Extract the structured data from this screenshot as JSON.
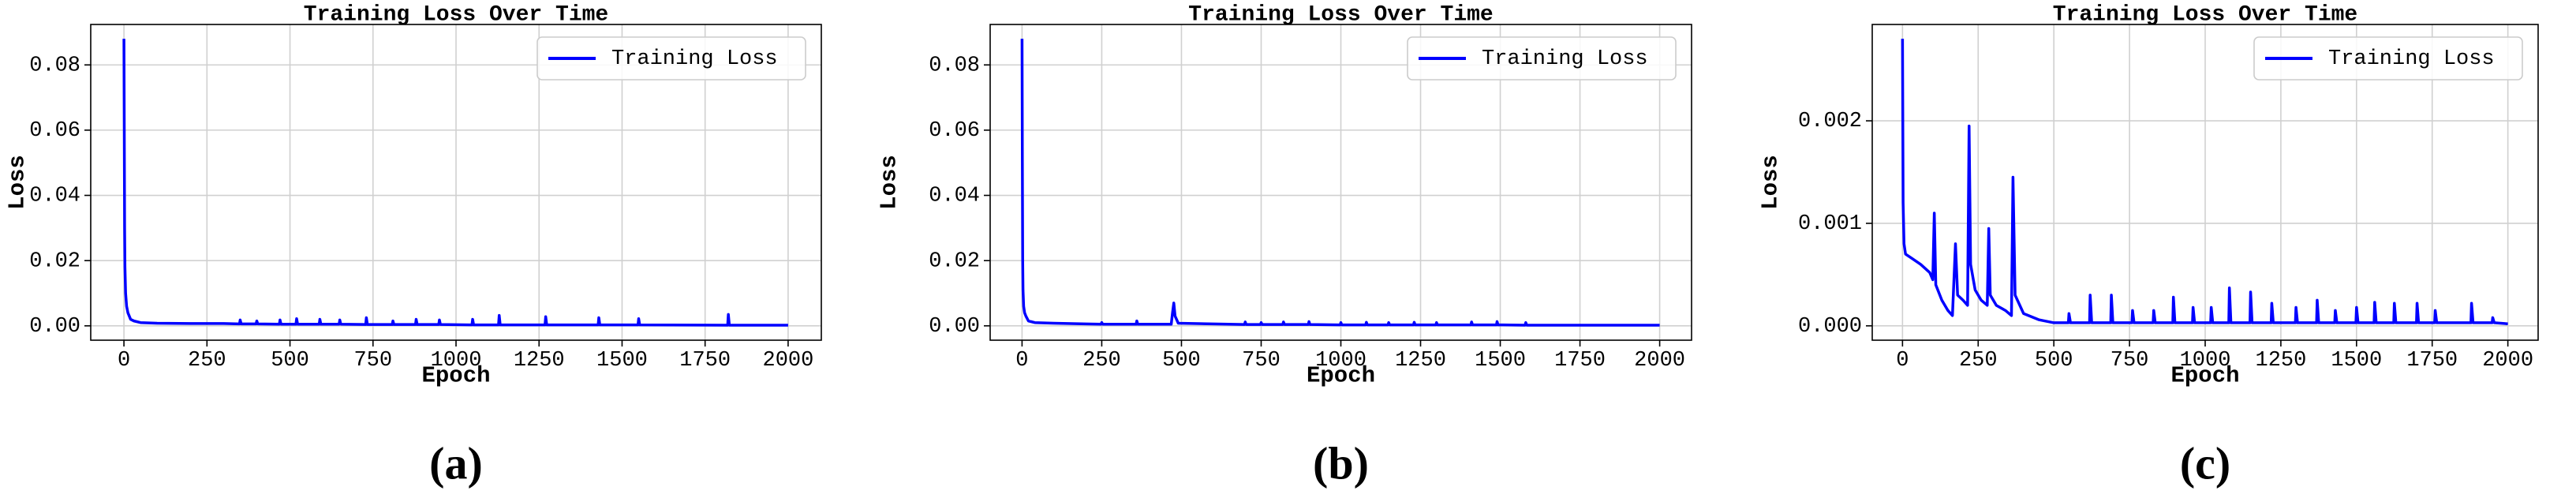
{
  "chart_data": [
    {
      "type": "line",
      "title": "Training Loss Over Time",
      "x_label": "Epoch",
      "y_label": "Loss",
      "caption": "(a)",
      "x": [
        0,
        1,
        2,
        3,
        5,
        8,
        12,
        20,
        30,
        50,
        100,
        200,
        300,
        348,
        350,
        353,
        398,
        400,
        403,
        468,
        470,
        473,
        518,
        520,
        523,
        588,
        590,
        593,
        648,
        650,
        653,
        728,
        730,
        733,
        808,
        810,
        813,
        878,
        880,
        883,
        948,
        950,
        953,
        1048,
        1050,
        1053,
        1128,
        1130,
        1133,
        1268,
        1270,
        1273,
        1428,
        1430,
        1433,
        1548,
        1550,
        1553,
        1818,
        1820,
        1823,
        1900,
        2000
      ],
      "series": [
        {
          "name": "Training Loss",
          "color": "#0000ff",
          "values": [
            0.088,
            0.06,
            0.03,
            0.018,
            0.01,
            0.006,
            0.004,
            0.002,
            0.0015,
            0.001,
            0.0008,
            0.0007,
            0.0007,
            0.0006,
            0.0018,
            0.0006,
            0.0006,
            0.0015,
            0.0006,
            0.0005,
            0.0018,
            0.0005,
            0.0005,
            0.0022,
            0.0005,
            0.0005,
            0.002,
            0.0005,
            0.0005,
            0.0018,
            0.0005,
            0.0004,
            0.0025,
            0.0004,
            0.0004,
            0.0015,
            0.0004,
            0.0004,
            0.002,
            0.0004,
            0.0004,
            0.0018,
            0.0004,
            0.0003,
            0.002,
            0.0003,
            0.0003,
            0.0032,
            0.0003,
            0.0003,
            0.0028,
            0.0003,
            0.0003,
            0.0025,
            0.0003,
            0.0003,
            0.0022,
            0.0003,
            0.0002,
            0.0035,
            0.0002,
            0.0002,
            0.0002
          ]
        }
      ],
      "xlim": [
        -100,
        2100
      ],
      "xticks": [
        0,
        250,
        500,
        750,
        1000,
        1250,
        1500,
        1750,
        2000
      ],
      "ylim": [
        -0.0044,
        0.0924
      ],
      "yticks": [
        {
          "value": 0,
          "label": "0.00"
        },
        {
          "value": 0.02,
          "label": "0.02"
        },
        {
          "value": 0.04,
          "label": "0.04"
        },
        {
          "value": 0.06,
          "label": "0.06"
        },
        {
          "value": 0.08,
          "label": "0.08"
        }
      ],
      "grid": true,
      "legend": "upper right"
    },
    {
      "type": "line",
      "title": "Training Loss Over Time",
      "x_label": "Epoch",
      "y_label": "Loss",
      "caption": "(b)",
      "x": [
        0,
        1,
        2,
        3,
        5,
        8,
        12,
        20,
        40,
        100,
        200,
        248,
        250,
        253,
        358,
        360,
        363,
        468,
        472,
        476,
        480,
        490,
        698,
        700,
        703,
        748,
        750,
        753,
        818,
        820,
        823,
        898,
        900,
        903,
        998,
        1000,
        1003,
        1078,
        1080,
        1083,
        1148,
        1150,
        1153,
        1228,
        1230,
        1233,
        1298,
        1300,
        1303,
        1408,
        1410,
        1413,
        1488,
        1490,
        1493,
        1578,
        1580,
        1583,
        1700,
        2000
      ],
      "series": [
        {
          "name": "Training Loss",
          "color": "#0000ff",
          "values": [
            0.088,
            0.05,
            0.02,
            0.011,
            0.006,
            0.004,
            0.003,
            0.0015,
            0.001,
            0.0008,
            0.0006,
            0.0005,
            0.001,
            0.0005,
            0.0005,
            0.0015,
            0.0005,
            0.0005,
            0.004,
            0.007,
            0.003,
            0.0008,
            0.0004,
            0.0012,
            0.0004,
            0.0004,
            0.001,
            0.0004,
            0.0004,
            0.0012,
            0.0004,
            0.0004,
            0.0013,
            0.0004,
            0.0003,
            0.001,
            0.0003,
            0.0003,
            0.0011,
            0.0003,
            0.0003,
            0.001,
            0.0003,
            0.0003,
            0.0011,
            0.0003,
            0.0003,
            0.001,
            0.0003,
            0.0003,
            0.0012,
            0.0003,
            0.0003,
            0.0013,
            0.0003,
            0.0002,
            0.001,
            0.0002,
            0.0002,
            0.0002
          ]
        }
      ],
      "xlim": [
        -100,
        2100
      ],
      "xticks": [
        0,
        250,
        500,
        750,
        1000,
        1250,
        1500,
        1750,
        2000
      ],
      "ylim": [
        -0.0044,
        0.0924
      ],
      "yticks": [
        {
          "value": 0,
          "label": "0.00"
        },
        {
          "value": 0.02,
          "label": "0.02"
        },
        {
          "value": 0.04,
          "label": "0.04"
        },
        {
          "value": 0.06,
          "label": "0.06"
        },
        {
          "value": 0.08,
          "label": "0.08"
        }
      ],
      "grid": true,
      "legend": "upper right"
    },
    {
      "type": "line",
      "title": "Training Loss Over Time",
      "x_label": "Epoch",
      "y_label": "Loss",
      "caption": "(c)",
      "x": [
        0,
        2,
        5,
        10,
        30,
        60,
        90,
        100,
        105,
        110,
        130,
        150,
        165,
        175,
        182,
        200,
        215,
        220,
        225,
        240,
        260,
        280,
        285,
        290,
        310,
        340,
        360,
        365,
        372,
        400,
        450,
        500,
        548,
        550,
        555,
        618,
        620,
        625,
        688,
        690,
        695,
        758,
        760,
        765,
        828,
        830,
        835,
        893,
        895,
        900,
        958,
        960,
        965,
        1018,
        1020,
        1025,
        1078,
        1080,
        1085,
        1148,
        1150,
        1155,
        1218,
        1220,
        1225,
        1298,
        1300,
        1305,
        1368,
        1370,
        1375,
        1428,
        1430,
        1435,
        1498,
        1500,
        1505,
        1558,
        1560,
        1565,
        1623,
        1625,
        1630,
        1698,
        1700,
        1705,
        1758,
        1760,
        1765,
        1878,
        1880,
        1885,
        1948,
        1950,
        1955,
        2000
      ],
      "series": [
        {
          "name": "Training Loss",
          "color": "#0000ff",
          "values": [
            0.0028,
            0.0012,
            0.0008,
            0.0007,
            0.00066,
            0.0006,
            0.00052,
            0.00045,
            0.0011,
            0.0004,
            0.00025,
            0.00015,
            0.0001,
            0.0008,
            0.0003,
            0.00025,
            0.0002,
            0.00195,
            0.0006,
            0.00035,
            0.00025,
            0.0002,
            0.00095,
            0.0003,
            0.0002,
            0.00015,
            0.0001,
            0.00145,
            0.0003,
            0.00012,
            6e-05,
            3e-05,
            3e-05,
            0.00012,
            3e-05,
            3e-05,
            0.0003,
            3e-05,
            3e-05,
            0.0003,
            3e-05,
            3e-05,
            0.00015,
            3e-05,
            3e-05,
            0.00015,
            3e-05,
            3e-05,
            0.00028,
            3e-05,
            3e-05,
            0.00018,
            3e-05,
            3e-05,
            0.00018,
            3e-05,
            3e-05,
            0.00037,
            3e-05,
            3e-05,
            0.00033,
            3e-05,
            3e-05,
            0.00022,
            3e-05,
            3e-05,
            0.00018,
            3e-05,
            3e-05,
            0.00025,
            3e-05,
            3e-05,
            0.00015,
            3e-05,
            3e-05,
            0.00018,
            3e-05,
            3e-05,
            0.00023,
            3e-05,
            3e-05,
            0.00022,
            3e-05,
            3e-05,
            0.00022,
            3e-05,
            3e-05,
            0.00015,
            3e-05,
            3e-05,
            0.00022,
            3e-05,
            3e-05,
            8e-05,
            3e-05,
            2e-05
          ]
        }
      ],
      "xlim": [
        -100,
        2100
      ],
      "xticks": [
        0,
        250,
        500,
        750,
        1000,
        1250,
        1500,
        1750,
        2000
      ],
      "ylim": [
        -0.00014,
        0.00294
      ],
      "yticks": [
        {
          "value": 0,
          "label": "0.000"
        },
        {
          "value": 0.001,
          "label": "0.001"
        },
        {
          "value": 0.002,
          "label": "0.002"
        }
      ],
      "grid": true,
      "legend": "upper right"
    }
  ]
}
